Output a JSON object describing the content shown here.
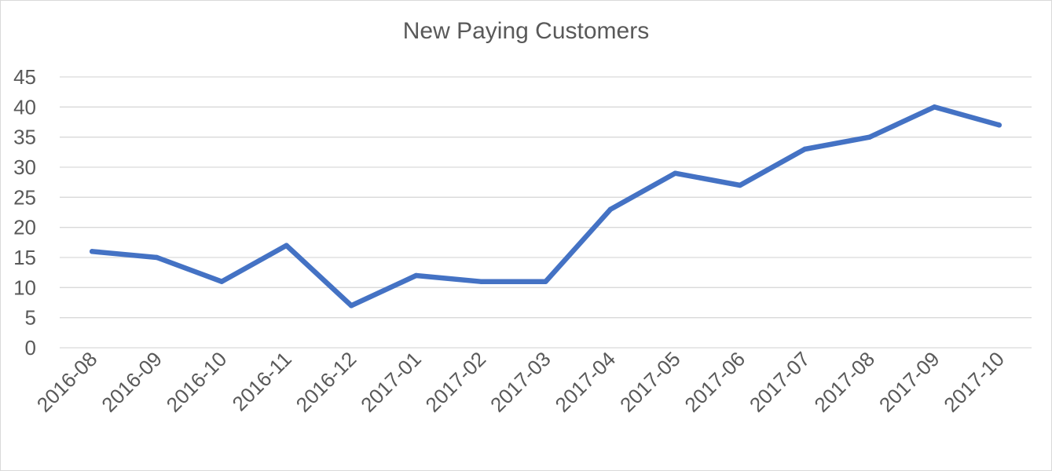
{
  "chart_data": {
    "type": "line",
    "title": "New Paying Customers",
    "xlabel": "",
    "ylabel": "",
    "categories": [
      "2016-08",
      "2016-09",
      "2016-10",
      "2016-11",
      "2016-12",
      "2017-01",
      "2017-02",
      "2017-03",
      "2017-04",
      "2017-05",
      "2017-06",
      "2017-07",
      "2017-08",
      "2017-09",
      "2017-10"
    ],
    "series": [
      {
        "values": [
          16,
          15,
          11,
          17,
          7,
          12,
          11,
          11,
          23,
          29,
          27,
          33,
          35,
          40,
          37
        ],
        "color": "#4472C4"
      }
    ],
    "ylim": [
      0,
      45
    ],
    "yticks": [
      0,
      5,
      10,
      15,
      20,
      25,
      30,
      35,
      40,
      45
    ],
    "grid": true,
    "legend": "none"
  }
}
